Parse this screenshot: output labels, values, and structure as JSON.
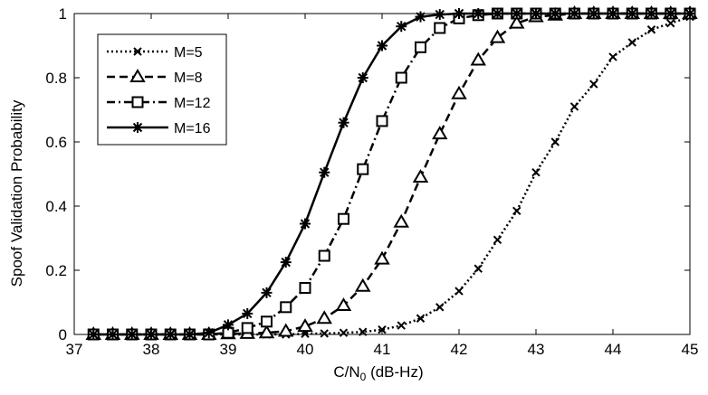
{
  "chart_data": {
    "type": "line",
    "title": "",
    "xlabel_main": "C/N",
    "xlabel_sub": "0",
    "xlabel_unit": " (dB-Hz)",
    "ylabel": "Spoof Validation Probability",
    "xlim": [
      37,
      45
    ],
    "ylim": [
      0,
      1
    ],
    "x_ticks": [
      "37",
      "38",
      "39",
      "40",
      "41",
      "42",
      "43",
      "44",
      "45"
    ],
    "y_ticks": [
      "0",
      "0.2",
      "0.4",
      "0.6",
      "0.8",
      "1"
    ],
    "grid": false,
    "legend_position": "top-left",
    "x": [
      37.25,
      37.5,
      37.75,
      38.0,
      38.25,
      38.5,
      38.75,
      39.0,
      39.25,
      39.5,
      39.75,
      40.0,
      40.25,
      40.5,
      40.75,
      41.0,
      41.25,
      41.5,
      41.75,
      42.0,
      42.25,
      42.5,
      42.75,
      43.0,
      43.25,
      43.5,
      43.75,
      44.0,
      44.25,
      44.5,
      44.75,
      45.0
    ],
    "series": [
      {
        "name": "M=5",
        "marker": "x",
        "dash": "dotted",
        "values": [
          0,
          0,
          0,
          0,
          0,
          0,
          0,
          0,
          0,
          0,
          0,
          0.002,
          0.003,
          0.005,
          0.008,
          0.015,
          0.028,
          0.05,
          0.085,
          0.135,
          0.205,
          0.295,
          0.385,
          0.505,
          0.6,
          0.71,
          0.78,
          0.865,
          0.91,
          0.95,
          0.97,
          0.99
        ]
      },
      {
        "name": "M=8",
        "marker": "triangle",
        "dash": "dashed",
        "values": [
          0,
          0,
          0,
          0,
          0,
          0,
          0,
          0.002,
          0.003,
          0.005,
          0.01,
          0.025,
          0.05,
          0.09,
          0.15,
          0.235,
          0.35,
          0.49,
          0.625,
          0.75,
          0.855,
          0.925,
          0.97,
          0.99,
          0.995,
          1,
          1,
          1,
          1,
          1,
          1,
          1
        ]
      },
      {
        "name": "M=12",
        "marker": "square",
        "dash": "dash-dot",
        "values": [
          0,
          0,
          0,
          0,
          0,
          0,
          0,
          0.005,
          0.02,
          0.04,
          0.085,
          0.145,
          0.245,
          0.36,
          0.515,
          0.665,
          0.8,
          0.895,
          0.955,
          0.985,
          0.995,
          1,
          1,
          1,
          1,
          1,
          1,
          1,
          1,
          1,
          1,
          1
        ]
      },
      {
        "name": "M=16",
        "marker": "star",
        "dash": "solid",
        "values": [
          0,
          0,
          0,
          0,
          0,
          0,
          0.005,
          0.03,
          0.065,
          0.13,
          0.225,
          0.345,
          0.505,
          0.66,
          0.8,
          0.9,
          0.96,
          0.99,
          0.997,
          1,
          1,
          1,
          1,
          1,
          1,
          1,
          1,
          1,
          1,
          1,
          1,
          1
        ]
      }
    ]
  }
}
